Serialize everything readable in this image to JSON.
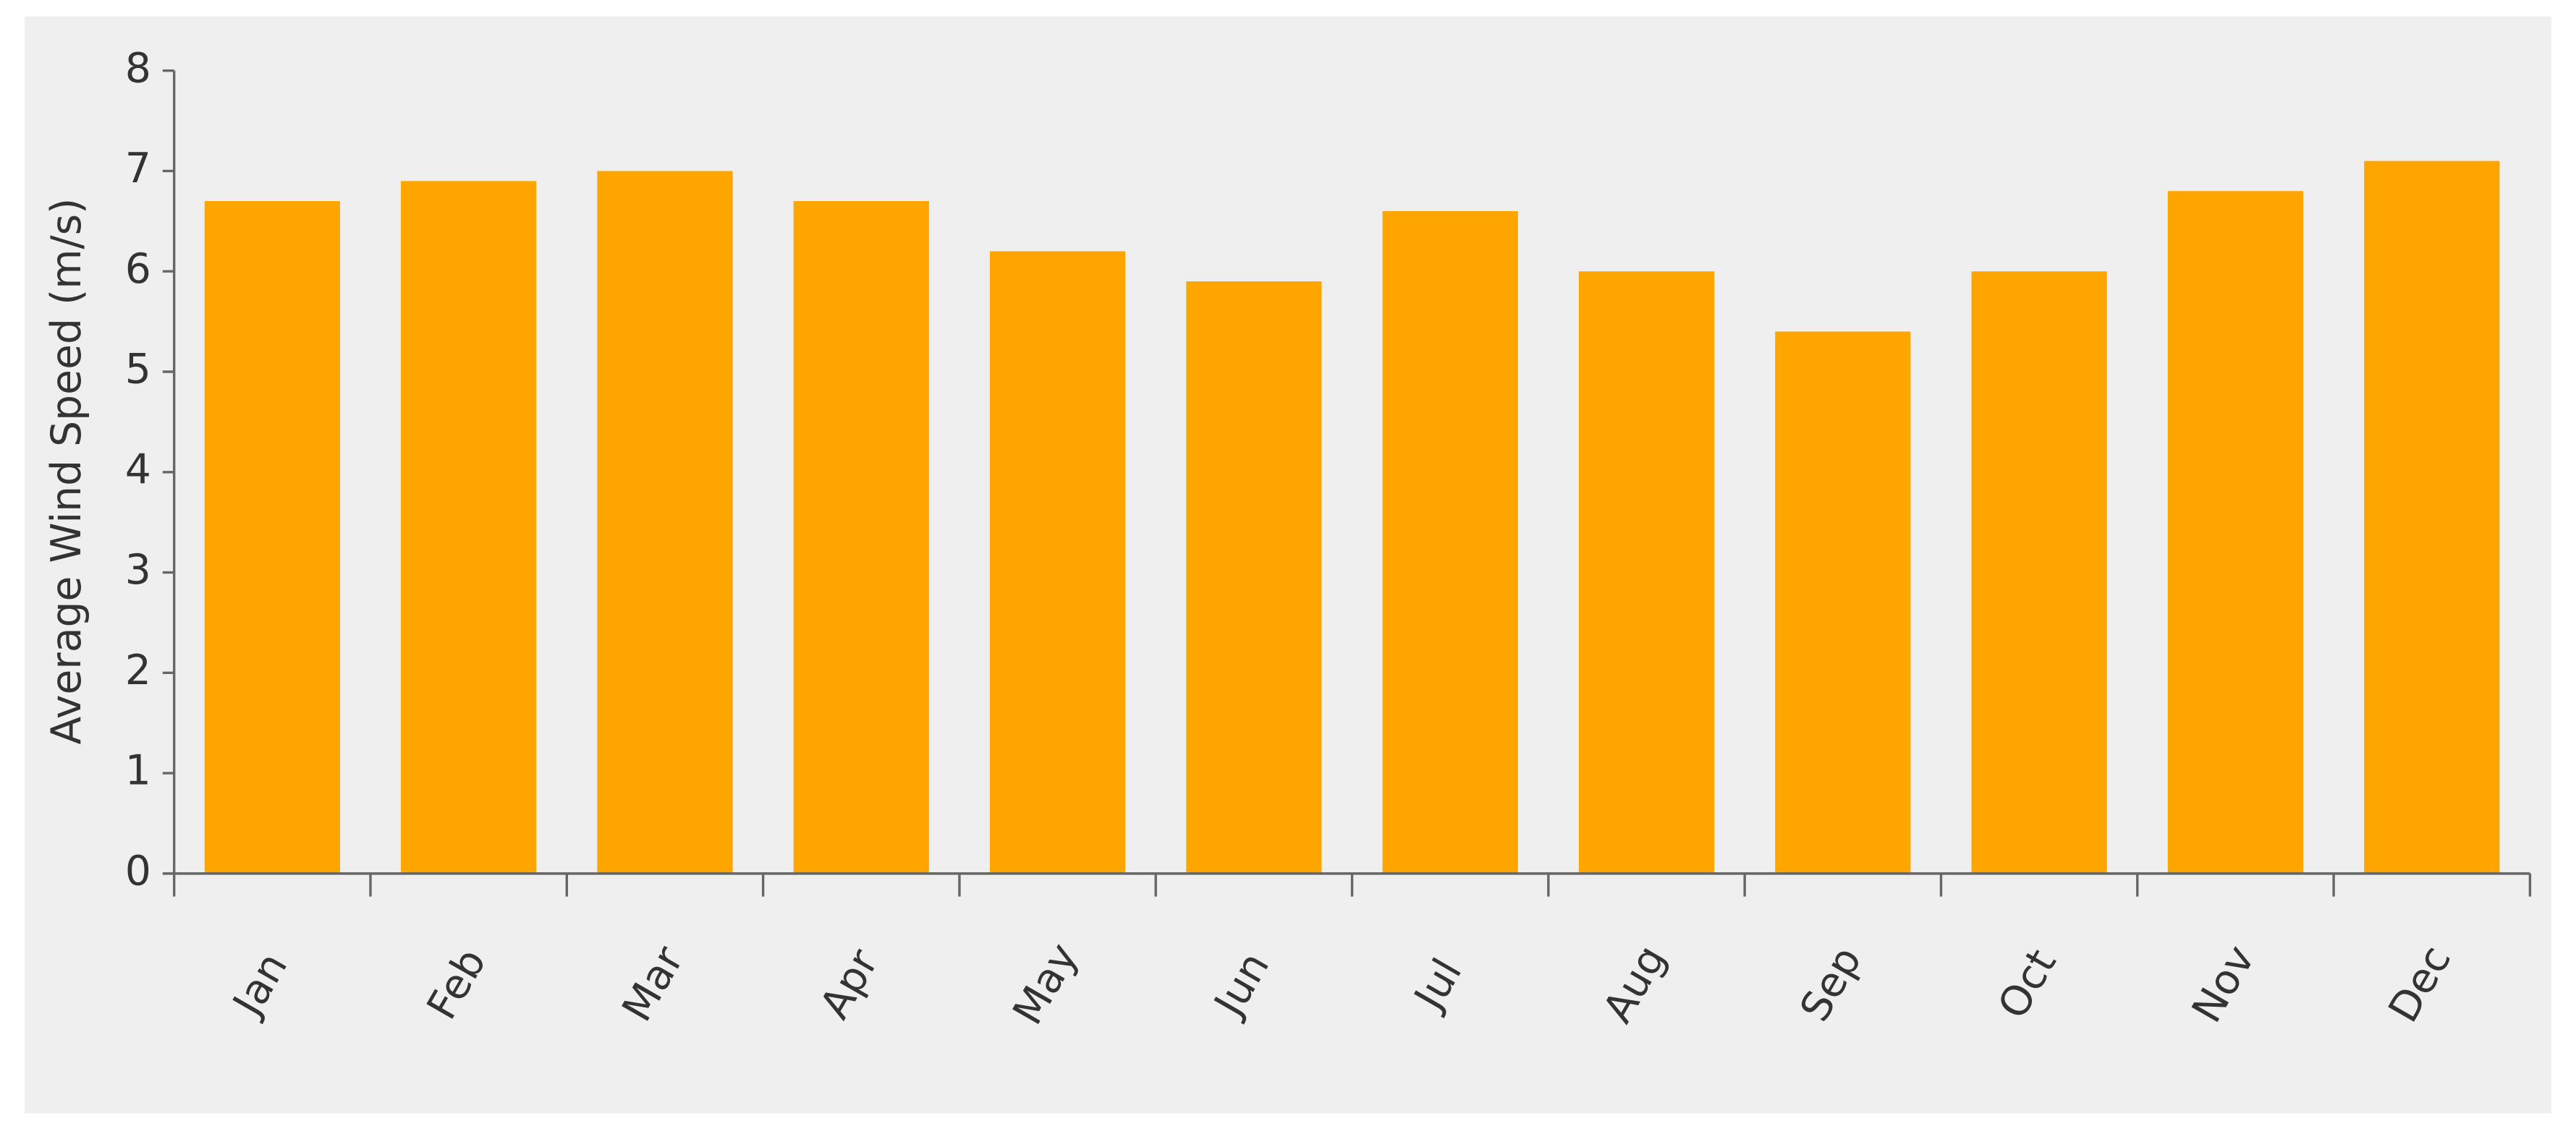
{
  "chart_data": {
    "type": "bar",
    "y_label": "Average Wind Speed (m/s)",
    "categories": [
      "Jan",
      "Feb",
      "Mar",
      "Apr",
      "May",
      "Jun",
      "Jul",
      "Aug",
      "Sep",
      "Oct",
      "Nov",
      "Dec"
    ],
    "values": [
      6.7,
      6.9,
      7.0,
      6.7,
      6.2,
      5.9,
      6.6,
      6.0,
      5.4,
      6.0,
      6.8,
      7.1
    ],
    "color": "#ffa500",
    "ylim": [
      0,
      8
    ],
    "yticks": [
      0,
      1,
      2,
      3,
      4,
      5,
      6,
      7,
      8
    ],
    "grid": false
  }
}
